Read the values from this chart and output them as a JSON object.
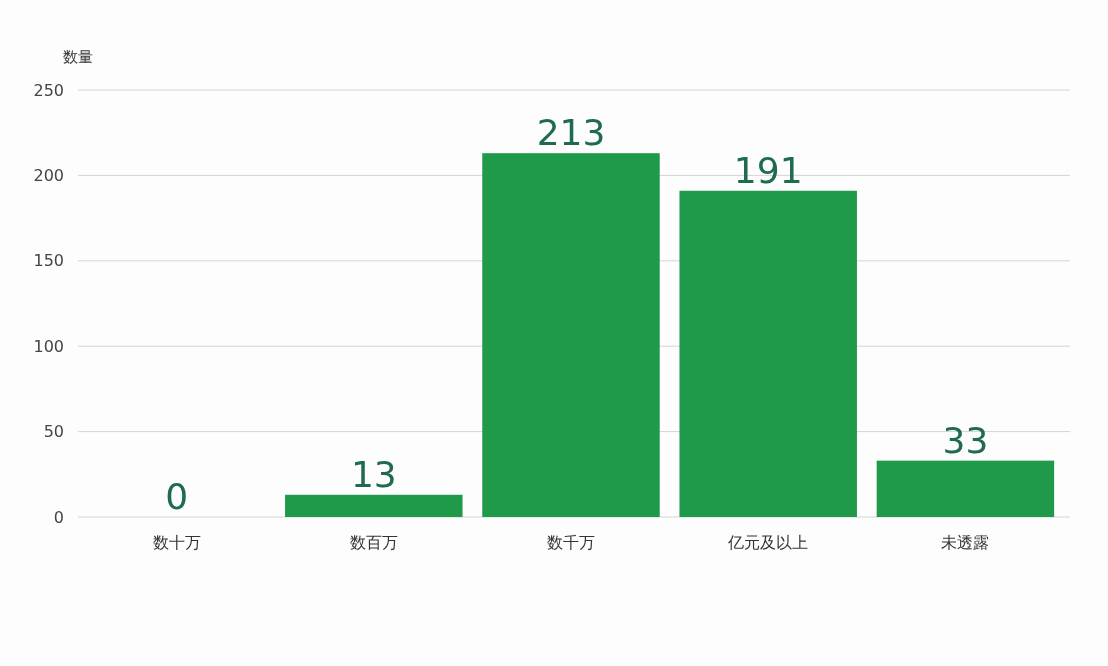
{
  "chart_data": {
    "type": "bar",
    "ylabel": "数量",
    "categories": [
      "数十万",
      "数百万",
      "数千万",
      "亿元及以上",
      "未透露"
    ],
    "values": [
      0,
      13,
      213,
      191,
      33
    ],
    "color": "#1e9a4a",
    "ylim": [
      0,
      250
    ],
    "yticks": [
      0,
      50,
      100,
      150,
      200,
      250
    ],
    "grid": "y",
    "data_labels": true
  }
}
